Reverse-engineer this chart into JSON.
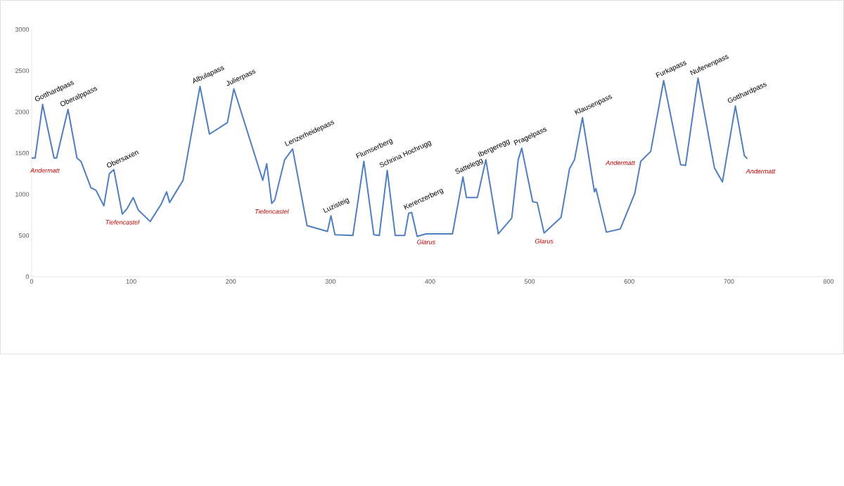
{
  "chart_data": {
    "type": "line",
    "xlim": [
      0,
      800
    ],
    "ylim": [
      0,
      3000
    ],
    "xticks": [
      0,
      100,
      200,
      300,
      400,
      500,
      600,
      700,
      800
    ],
    "yticks": [
      0,
      500,
      1000,
      1500,
      2000,
      2500,
      3000
    ],
    "series": [
      {
        "color": "#4f7fc0",
        "x": [
          0,
          3.5,
          11,
          22.5,
          25,
          36.5,
          45.5,
          49.5,
          59.5,
          64.5,
          72.5,
          78,
          82.5,
          91,
          96,
          102,
          107,
          119,
          130,
          135.5,
          138.5,
          152,
          169,
          178.5,
          196.5,
          203,
          232,
          236,
          241,
          244,
          254,
          262,
          276.5,
          297,
          300.5,
          304.5,
          322.5,
          333.5,
          343.5,
          349,
          357,
          365,
          374.5,
          378.5,
          381.5,
          387,
          396,
          422.5,
          433,
          436.5,
          447.5,
          456,
          468.5,
          482,
          488.5,
          492,
          503,
          507.5,
          514.5,
          531.5,
          540,
          545,
          553,
          565,
          566.5,
          577,
          591,
          605.5,
          611.5,
          621.5,
          634.5,
          651.5,
          656.5,
          669,
          685.5,
          693.5,
          706.5,
          715.5,
          718.5
        ],
        "values": [
          1440,
          1440,
          2090,
          1440,
          1440,
          2030,
          1440,
          1400,
          1080,
          1050,
          860,
          1250,
          1300,
          760,
          830,
          960,
          810,
          670,
          880,
          1030,
          900,
          1170,
          2310,
          1730,
          1870,
          2280,
          1170,
          1370,
          890,
          930,
          1420,
          1550,
          620,
          550,
          740,
          510,
          500,
          1400,
          510,
          500,
          1290,
          500,
          500,
          770,
          780,
          490,
          520,
          520,
          1210,
          960,
          960,
          1420,
          520,
          710,
          1420,
          1560,
          910,
          900,
          530,
          720,
          1310,
          1420,
          1930,
          1030,
          1070,
          540,
          580,
          1010,
          1400,
          1520,
          2380,
          1360,
          1350,
          2410,
          1320,
          1150,
          2070,
          1470,
          1430
        ]
      }
    ],
    "annotations": [
      {
        "text": "Gotthardpass",
        "x": 11,
        "y": 2090
      },
      {
        "text": "Oberalppass",
        "x": 36.5,
        "y": 2030
      },
      {
        "text": "Obersaxen",
        "x": 82.5,
        "y": 1300
      },
      {
        "text": "Albulapass",
        "x": 169,
        "y": 2310
      },
      {
        "text": "Julierpass",
        "x": 203,
        "y": 2280
      },
      {
        "text": "Lenzerheidepass",
        "x": 262,
        "y": 1550
      },
      {
        "text": "Luzisteig",
        "x": 300.5,
        "y": 740
      },
      {
        "text": "Flumserberg",
        "x": 333.5,
        "y": 1400
      },
      {
        "text": "Schrina Hochrugg",
        "x": 357,
        "y": 1290
      },
      {
        "text": "Kerenzerberg",
        "x": 381.5,
        "y": 780
      },
      {
        "text": "Sattelegg",
        "x": 433,
        "y": 1210
      },
      {
        "text": "Ibergeregg",
        "x": 456,
        "y": 1420
      },
      {
        "text": "Pragelpass",
        "x": 492,
        "y": 1560
      },
      {
        "text": "Klausenpass",
        "x": 553,
        "y": 1930
      },
      {
        "text": "Furkapass",
        "x": 634.5,
        "y": 2380
      },
      {
        "text": "Nufenenpass",
        "x": 669,
        "y": 2410
      },
      {
        "text": "Gotthardpass",
        "x": 706.5,
        "y": 2070
      },
      {
        "text": "Andermatt",
        "x": 0,
        "y": 1440
      },
      {
        "text": "Tiefencastel",
        "x": 91,
        "y": 760
      },
      {
        "text": "Tiefencastel",
        "x": 241,
        "y": 890
      },
      {
        "text": "Glarus",
        "x": 396,
        "y": 520
      },
      {
        "text": "Glarus",
        "x": 514.5,
        "y": 530
      },
      {
        "text": "Andermatt",
        "x": 611.5,
        "y": 1400
      },
      {
        "text": "Andermatt",
        "x": 718.5,
        "y": 1430
      }
    ]
  }
}
